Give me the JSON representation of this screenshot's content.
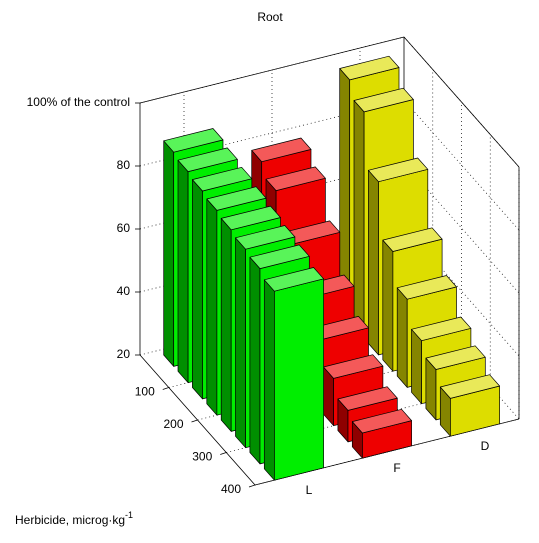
{
  "chart_data": {
    "type": "bar3d",
    "title": "Root",
    "ylabel": "Herbicide, microg·kg",
    "ylabel_exponent": "-1",
    "categories": [
      "L",
      "F",
      "D"
    ],
    "x": [
      50,
      100,
      150,
      200,
      250,
      300,
      350,
      400
    ],
    "xlim": [
      0,
      400
    ],
    "xticks": [
      100,
      200,
      300,
      400
    ],
    "zlim": [
      20,
      100
    ],
    "zticks": [
      20,
      40,
      60,
      80,
      {
        "value": 100,
        "label": "100% of the control"
      }
    ],
    "grid": true,
    "series": [
      {
        "name": "L",
        "color": "#00ee00",
        "values": [
          88,
          87,
          86,
          85,
          84,
          83,
          82,
          80
        ]
      },
      {
        "name": "F",
        "color": "#ee0000",
        "values": [
          78,
          74,
          62,
          50,
          42,
          35,
          30,
          28
        ]
      },
      {
        "name": "D",
        "color": "#dddd00",
        "values": [
          97,
          92,
          75,
          58,
          48,
          40,
          36,
          32
        ]
      }
    ]
  }
}
